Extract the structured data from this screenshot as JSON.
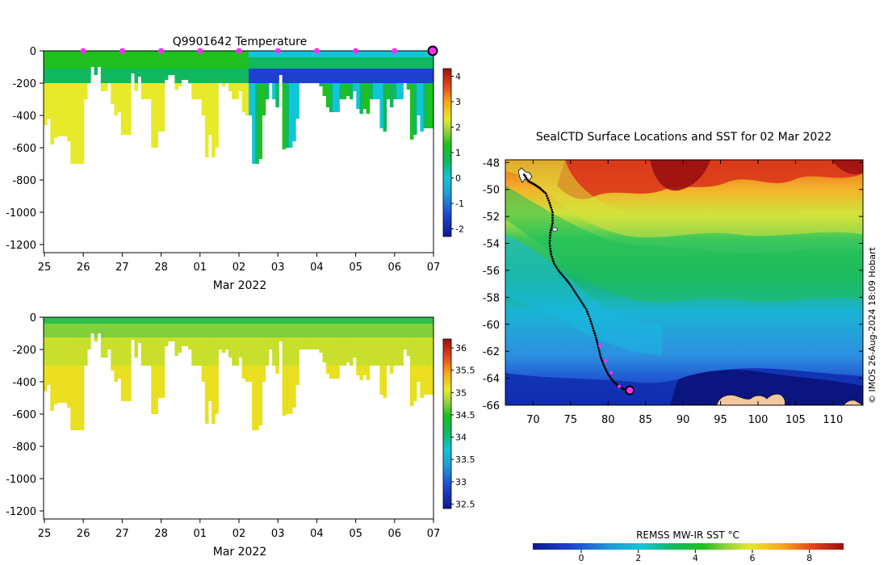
{
  "chart_data": [
    {
      "type": "heatmap",
      "name": "temperature-section",
      "title": "Q9901642  Temperature",
      "xlabel": "Mar 2022",
      "x_ticks": [
        "25",
        "26",
        "27",
        "28",
        "01",
        "02",
        "03",
        "04",
        "05",
        "06",
        "07"
      ],
      "y_ticks": [
        "0",
        "-200",
        "-400",
        "-600",
        "-800",
        "-1000",
        "-1200"
      ],
      "ylim": [
        -1250,
        0
      ],
      "colorbar": {
        "ticks": [
          "4",
          "3",
          "2",
          "1",
          "0",
          "-1",
          "-2"
        ],
        "range": [
          -2.3,
          4.3
        ]
      },
      "profile_depths_m": [
        460,
        420,
        580,
        540,
        530,
        530,
        530,
        560,
        700,
        700,
        700,
        700,
        300,
        200,
        100,
        150,
        100,
        250,
        250,
        200,
        330,
        400,
        380,
        520,
        520,
        520,
        140,
        250,
        160,
        300,
        300,
        300,
        600,
        600,
        500,
        500,
        180,
        150,
        150,
        240,
        220,
        180,
        180,
        200,
        300,
        300,
        300,
        400,
        660,
        520,
        660,
        600,
        200,
        220,
        200,
        250,
        300,
        300,
        250,
        380,
        400,
        400,
        700,
        700,
        670,
        400,
        300,
        200,
        300,
        350,
        150,
        610,
        600,
        600,
        560,
        420,
        200,
        200,
        200,
        200,
        200,
        200,
        220,
        280,
        350,
        380,
        380,
        380,
        300,
        300,
        280,
        300,
        250,
        360,
        390,
        360,
        390,
        300,
        300,
        300,
        480,
        500,
        300,
        350,
        300,
        300,
        300,
        200,
        240,
        550,
        520,
        400,
        500,
        480,
        480,
        480
      ],
      "surface_marker_days": [
        "26",
        "27",
        "28",
        "01",
        "02",
        "03",
        "04",
        "05",
        "06"
      ],
      "final_marker_day": "07"
    },
    {
      "type": "heatmap",
      "name": "salinity-section",
      "title": "",
      "xlabel": "Mar 2022",
      "x_ticks": [
        "25",
        "26",
        "27",
        "28",
        "01",
        "02",
        "03",
        "04",
        "05",
        "06",
        "07"
      ],
      "y_ticks": [
        "0",
        "-200",
        "-400",
        "-600",
        "-800",
        "-1000",
        "-1200"
      ],
      "ylim": [
        -1250,
        0
      ],
      "colorbar": {
        "ticks": [
          "36",
          "35.5",
          "35",
          "34.5",
          "34",
          "33.5",
          "33",
          "32.5"
        ],
        "range": [
          32.4,
          36.2
        ]
      }
    },
    {
      "type": "heatmap",
      "name": "sst-map",
      "title": "SealCTD Surface Locations and SST for 02 Mar 2022",
      "x_ticks": [
        "70",
        "75",
        "80",
        "85",
        "90",
        "95",
        "100",
        "105",
        "110"
      ],
      "y_ticks": [
        "-48",
        "-50",
        "-52",
        "-54",
        "-56",
        "-58",
        "-60",
        "-62",
        "-64",
        "-66"
      ],
      "xlim": [
        66.3,
        114
      ],
      "ylim": [
        -66,
        -47.8
      ],
      "track": [
        [
          68.8,
          -48.9
        ],
        [
          69.4,
          -49.4
        ],
        [
          70.1,
          -49.6
        ],
        [
          70.9,
          -49.9
        ],
        [
          71.7,
          -50.3
        ],
        [
          72.2,
          -51.0
        ],
        [
          72.6,
          -51.7
        ],
        [
          72.6,
          -52.5
        ],
        [
          72.3,
          -53.2
        ],
        [
          72.2,
          -54.0
        ],
        [
          72.4,
          -54.8
        ],
        [
          72.8,
          -55.5
        ],
        [
          73.5,
          -56.1
        ],
        [
          74.3,
          -56.6
        ],
        [
          75.0,
          -57.1
        ],
        [
          75.7,
          -57.7
        ],
        [
          76.4,
          -58.3
        ],
        [
          77.1,
          -58.9
        ],
        [
          77.6,
          -59.6
        ],
        [
          78.0,
          -60.3
        ],
        [
          78.4,
          -61.0
        ],
        [
          78.7,
          -61.7
        ],
        [
          79.0,
          -62.4
        ],
        [
          79.4,
          -63.0
        ],
        [
          79.9,
          -63.6
        ],
        [
          80.5,
          -64.1
        ],
        [
          81.2,
          -64.5
        ],
        [
          82.0,
          -64.8
        ],
        [
          82.8,
          -64.9
        ]
      ],
      "track_magenta_points": [
        [
          78.9,
          -61.6
        ],
        [
          79.7,
          -62.7
        ],
        [
          80.4,
          -63.6
        ],
        [
          81.5,
          -64.6
        ]
      ],
      "final_location": [
        82.9,
        -64.9
      ],
      "colorbar_label": "REMSS MW-IR SST °C",
      "colorbar_ticks": [
        "0",
        "2",
        "4",
        "6",
        "8"
      ],
      "colorbar_range": [
        -1.7,
        9.2
      ]
    }
  ],
  "sidebar_credit": "© IMOS 26-Aug-2024 18:09 Hobart"
}
